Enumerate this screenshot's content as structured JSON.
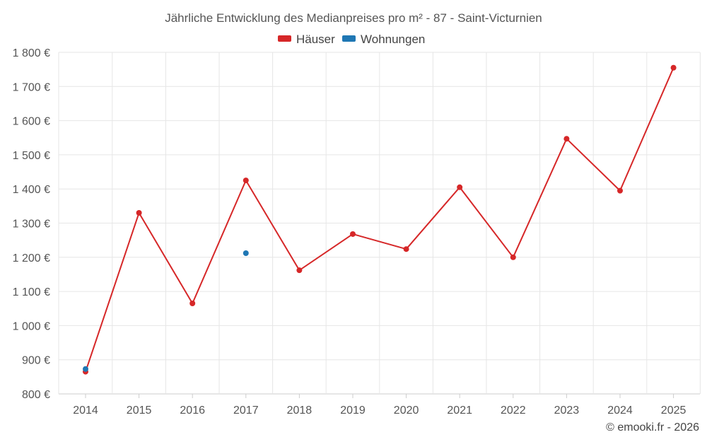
{
  "chart_data": {
    "type": "line",
    "title": "Jährliche Entwicklung des Medianpreises pro m² - 87 - Saint-Victurnien",
    "categories": [
      "2014",
      "2015",
      "2016",
      "2017",
      "2018",
      "2019",
      "2020",
      "2021",
      "2022",
      "2023",
      "2024",
      "2025"
    ],
    "y_ticks": [
      "800 €",
      "900 €",
      "1 000 €",
      "1 100 €",
      "1 200 €",
      "1 300 €",
      "1 400 €",
      "1 500 €",
      "1 600 €",
      "1 700 €",
      "1 800 €"
    ],
    "ylim": [
      800,
      1800
    ],
    "grid": true,
    "legend_position": "top-center",
    "series": [
      {
        "name": "Häuser",
        "color": "#d62728",
        "values": [
          865,
          1330,
          1065,
          1425,
          1162,
          1268,
          1224,
          1405,
          1200,
          1547,
          1395,
          1755
        ]
      },
      {
        "name": "Wohnungen",
        "color": "#1f77b4",
        "values": [
          873,
          null,
          null,
          1212,
          null,
          null,
          null,
          null,
          null,
          null,
          null,
          null
        ]
      }
    ]
  },
  "credit": "© emooki.fr - 2026"
}
